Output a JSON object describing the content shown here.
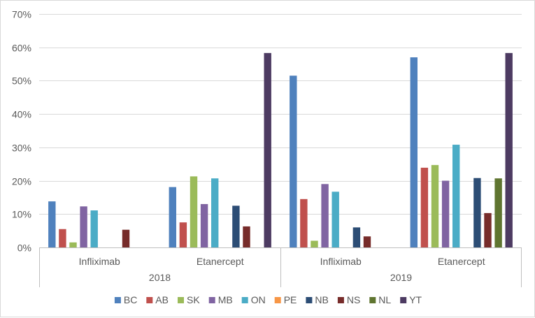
{
  "chart_data": {
    "type": "bar",
    "title": "",
    "xlabel": "",
    "ylabel": "",
    "ylim": [
      0,
      0.7
    ],
    "y_ticks": [
      "0%",
      "10%",
      "20%",
      "30%",
      "40%",
      "50%",
      "60%",
      "70%"
    ],
    "grid": true,
    "legend_position": "bottom",
    "groups": [
      {
        "label": "2018",
        "categories": [
          "Infliximab",
          "Etanercept"
        ]
      },
      {
        "label": "2019",
        "categories": [
          "Infliximab",
          "Etanercept"
        ]
      }
    ],
    "categories": [
      "Infliximab",
      "Etanercept",
      "Infliximab",
      "Etanercept"
    ],
    "series": [
      {
        "name": "BC",
        "color": "#4f81bd",
        "values": [
          0.138,
          0.181,
          0.515,
          0.57
        ]
      },
      {
        "name": "AB",
        "color": "#c0504d",
        "values": [
          0.055,
          0.075,
          0.145,
          0.239
        ]
      },
      {
        "name": "SK",
        "color": "#9bbb59",
        "values": [
          0.015,
          0.213,
          0.02,
          0.247
        ]
      },
      {
        "name": "MB",
        "color": "#8064a2",
        "values": [
          0.123,
          0.13,
          0.19,
          0.2
        ]
      },
      {
        "name": "ON",
        "color": "#4bacc6",
        "values": [
          0.111,
          0.207,
          0.167,
          0.308
        ]
      },
      {
        "name": "PE",
        "color": "#f79646",
        "values": [
          0,
          0,
          0,
          0
        ]
      },
      {
        "name": "NB",
        "color": "#2c4d75",
        "values": [
          0,
          0.125,
          0.06,
          0.208
        ]
      },
      {
        "name": "NS",
        "color": "#772c2a",
        "values": [
          0.053,
          0.063,
          0.033,
          0.103
        ]
      },
      {
        "name": "NL",
        "color": "#5f7530",
        "values": [
          0,
          0,
          0,
          0.207
        ]
      },
      {
        "name": "YT",
        "color": "#4d3b62",
        "values": [
          0,
          0.583,
          0,
          0.583
        ]
      }
    ]
  },
  "colors": {
    "grid": "#d9d9d9",
    "axis": "#bfbfbf",
    "text": "#595959"
  }
}
